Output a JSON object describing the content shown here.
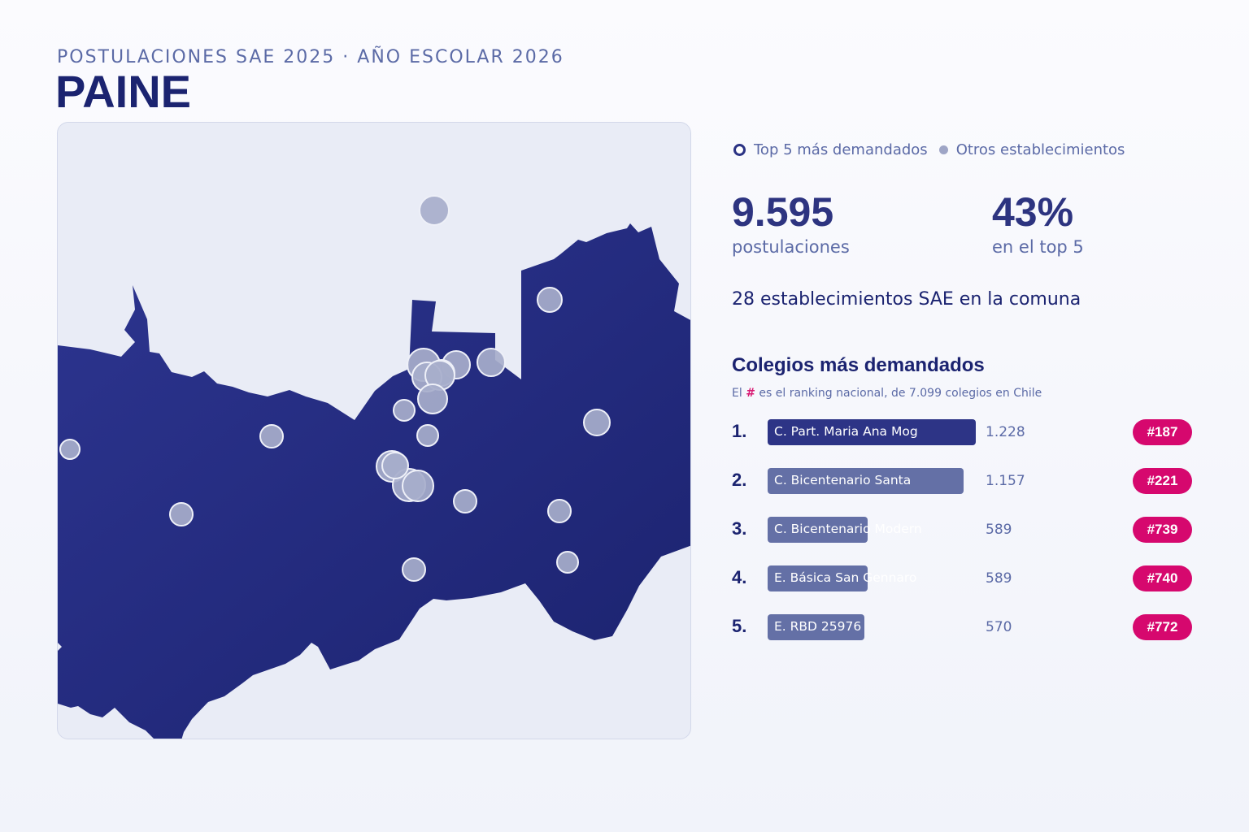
{
  "header": {
    "subtitle": "POSTULACIONES SAE 2025 · AÑO ESCOLAR 2026",
    "title": "PAINE"
  },
  "legend": {
    "top5": "Top 5 más demandados",
    "others": "Otros establecimientos"
  },
  "stats": {
    "postulaciones_value": "9.595",
    "postulaciones_label": "postulaciones",
    "top5_share_value": "43%",
    "top5_share_label": "en el top 5"
  },
  "summary": "28 establecimientos SAE en la comuna",
  "ranking": {
    "title": "Colegios más demandados",
    "note_prefix": "El",
    "note_hash": "#",
    "note_suffix": "es el ranking nacional, de 7.099 colegios en Chile",
    "max_value": 1228,
    "items": [
      {
        "rank": "1.",
        "name": "C. Part. Maria Ana Mog",
        "value": "1.228",
        "amount": 1228,
        "national": "#187",
        "color": "#2d3486"
      },
      {
        "rank": "2.",
        "name": "C. Bicentenario Santa",
        "value": "1.157",
        "amount": 1157,
        "national": "#221",
        "color": "#6470a6"
      },
      {
        "rank": "3.",
        "name": "C. Bicentenario Modern",
        "value": "589",
        "amount": 589,
        "national": "#739",
        "color": "#6470a6"
      },
      {
        "rank": "4.",
        "name": "E. Básica San Gennaro",
        "value": "589",
        "amount": 589,
        "national": "#740",
        "color": "#6470a6"
      },
      {
        "rank": "5.",
        "name": "E. RBD 25976",
        "value": "570",
        "amount": 570,
        "national": "#772",
        "color": "#6470a6"
      }
    ]
  },
  "colors": {
    "region_fill": "#232b80",
    "marker_fill": "#a7aecb",
    "marker_stroke": "#eef0f8",
    "badge": "#d6086e",
    "title": "#1b2370"
  }
}
